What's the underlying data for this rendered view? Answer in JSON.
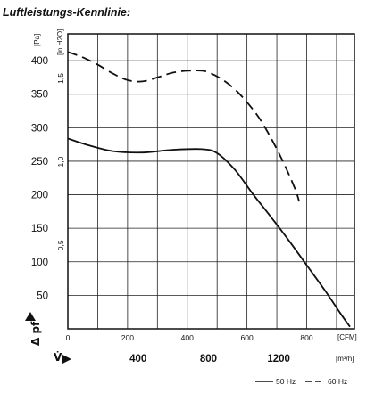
{
  "title": "Luftleistungs-Kennlinie:",
  "chart_data": {
    "type": "line",
    "y_unit_pa": "[Pa]",
    "y_unit_inh2o": "[in H2O]",
    "x_unit_cfm": "[CFM]",
    "x_unit_m3h": "[m³/h]",
    "y_axis_symbol": "Δ pf",
    "x_axis_symbol": "V̇",
    "ylim_pa": [
      0,
      440
    ],
    "xlim_cfm": [
      0,
      960
    ],
    "y_ticks_pa": [
      "400",
      "350",
      "300",
      "250",
      "200",
      "150",
      "100",
      "50"
    ],
    "y_ticks_inh2o": [
      "1,5",
      "1,0",
      "0,5"
    ],
    "x_ticks_cfm": [
      "0",
      "200",
      "400",
      "600",
      "800"
    ],
    "x_ticks_m3h": [
      "400",
      "800",
      "1200"
    ],
    "grid": true,
    "series": [
      {
        "name": "50 Hz",
        "style": "solid",
        "x_cfm": [
          0,
          60,
          150,
          250,
          350,
          450,
          500,
          560,
          620,
          680,
          740,
          800,
          860,
          910,
          945
        ],
        "y_pa": [
          284,
          275,
          265,
          263,
          267,
          268,
          262,
          237,
          201,
          167,
          132,
          95,
          58,
          25,
          3
        ]
      },
      {
        "name": "60 Hz",
        "style": "dashed",
        "x_cfm": [
          0,
          50,
          100,
          150,
          200,
          250,
          300,
          350,
          400,
          450,
          480,
          520,
          560,
          600,
          640,
          680,
          720,
          760,
          775
        ],
        "y_pa": [
          413,
          405,
          394,
          381,
          371,
          369,
          375,
          382,
          385,
          385,
          381,
          371,
          357,
          338,
          315,
          285,
          250,
          210,
          190
        ]
      }
    ]
  },
  "legend": {
    "s50": "50 Hz",
    "s60": "60 Hz"
  }
}
